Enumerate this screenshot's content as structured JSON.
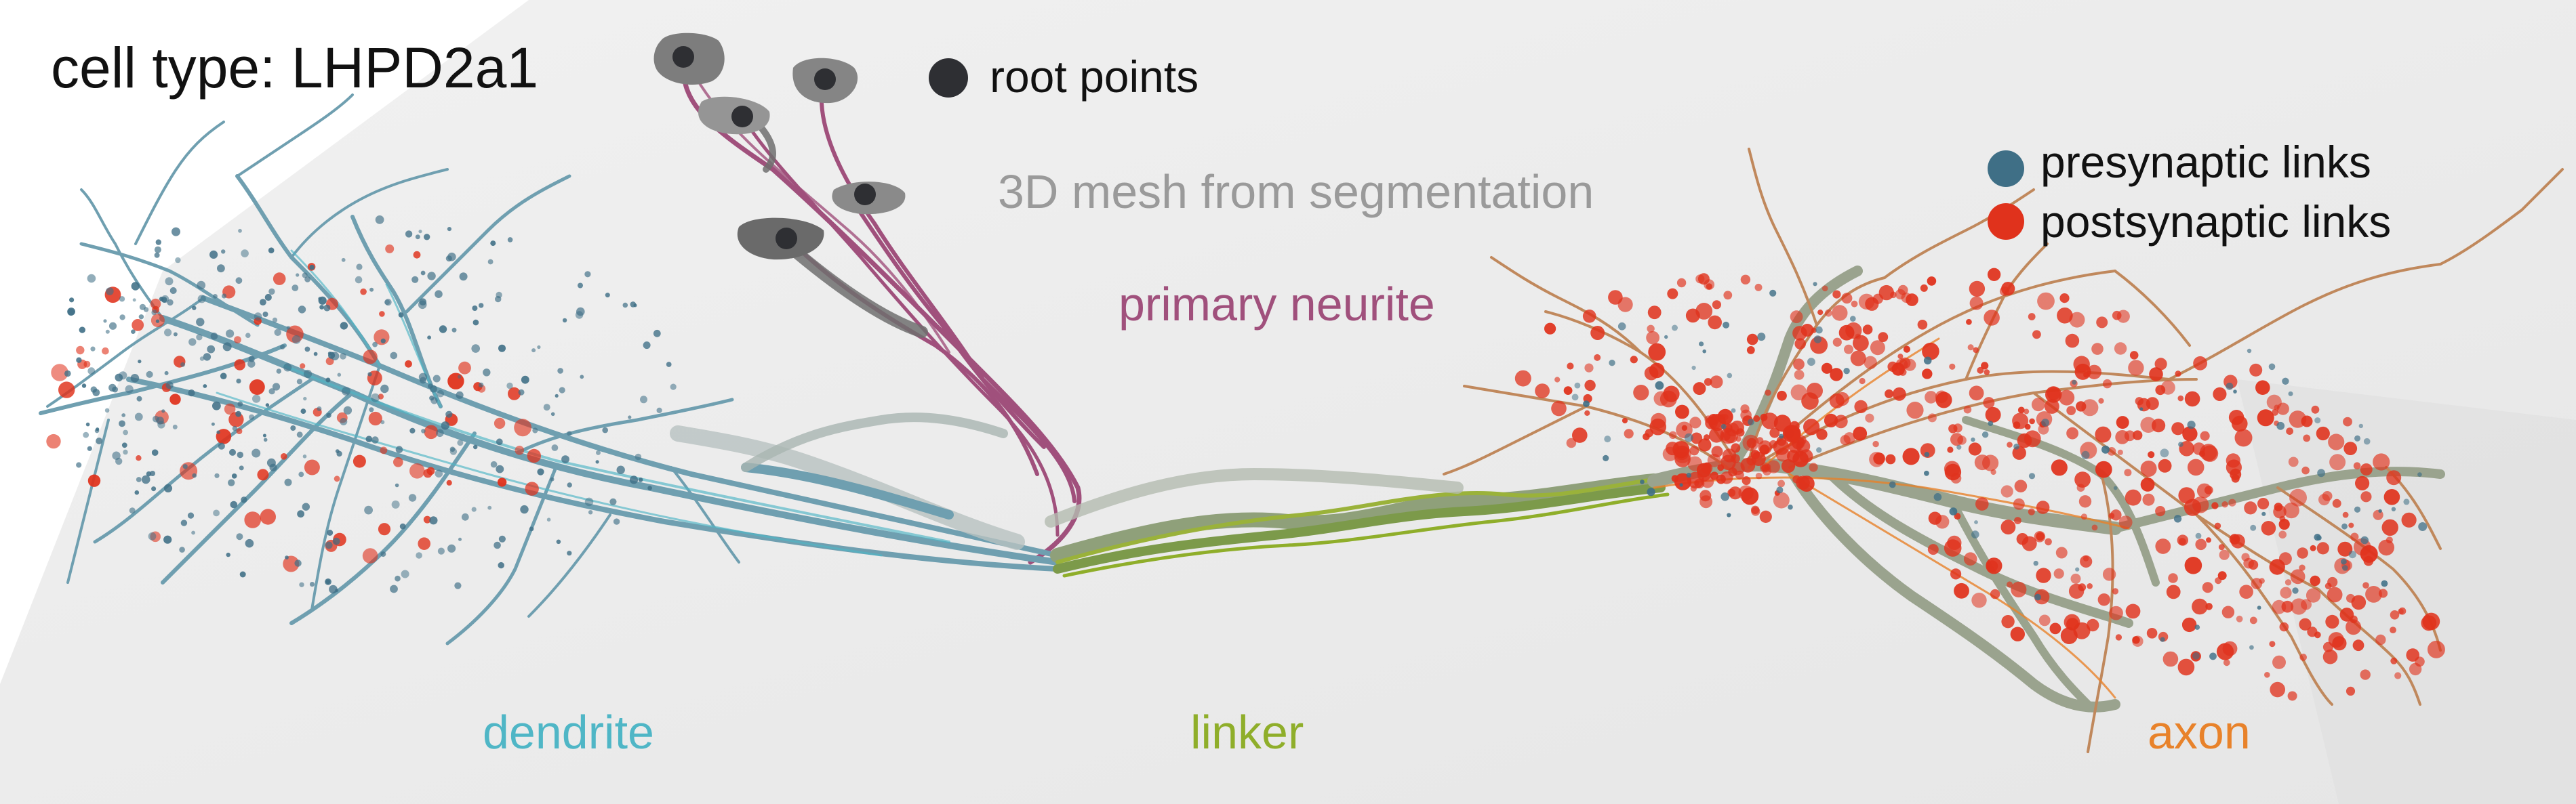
{
  "figure": {
    "cell_type_label": "cell type: LHPD2a1",
    "mesh_label": "3D mesh from segmentation",
    "regions": {
      "primary_neurite": "primary neurite",
      "dendrite": "dendrite",
      "linker": "linker",
      "axon": "axon"
    },
    "legend": {
      "root_points": "root points",
      "presynaptic": "presynaptic links",
      "postsynaptic": "postsynaptic links"
    }
  },
  "colors": {
    "root_point": "#2e2f33",
    "presynaptic": "#3f6f86",
    "postsynaptic": "#e0321c",
    "dendrite": "#4fb6c6",
    "linker": "#8fae2a",
    "axon": "#e8822a",
    "primary_neurite": "#a0507c",
    "mesh_label": "#9a9a9a",
    "soma_mesh": "#7a7a7a",
    "background_panel": "#ececec"
  }
}
